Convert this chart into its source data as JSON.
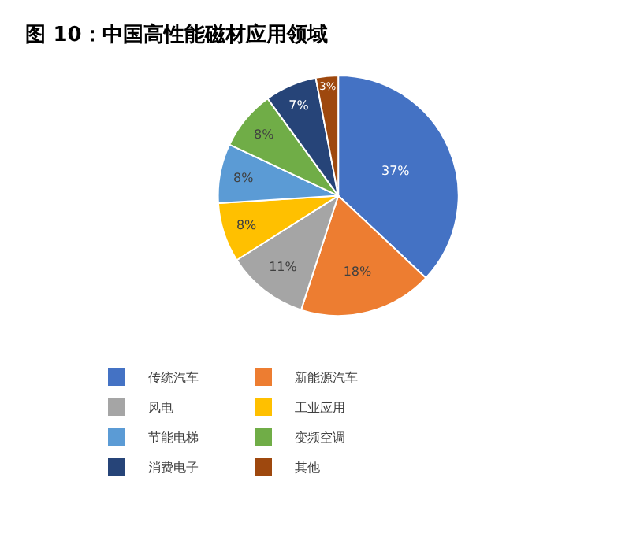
{
  "chart_data": {
    "type": "pie",
    "title": "图 10：中国高性能磁材应用领域",
    "categories": [
      "传统汽车",
      "新能源汽车",
      "风电",
      "工业应用",
      "节能电梯",
      "变频空调",
      "消费电子",
      "其他"
    ],
    "values": [
      37,
      18,
      11,
      8,
      8,
      8,
      7,
      3
    ],
    "value_labels": [
      "37%",
      "18%",
      "11%",
      "8%",
      "8%",
      "8%",
      "7%",
      "3%"
    ],
    "colors": [
      "#4472c4",
      "#ed7d31",
      "#a5a5a5",
      "#ffc000",
      "#5b9bd5",
      "#70ad47",
      "#264478",
      "#9e480e"
    ],
    "legend": "bottom"
  }
}
